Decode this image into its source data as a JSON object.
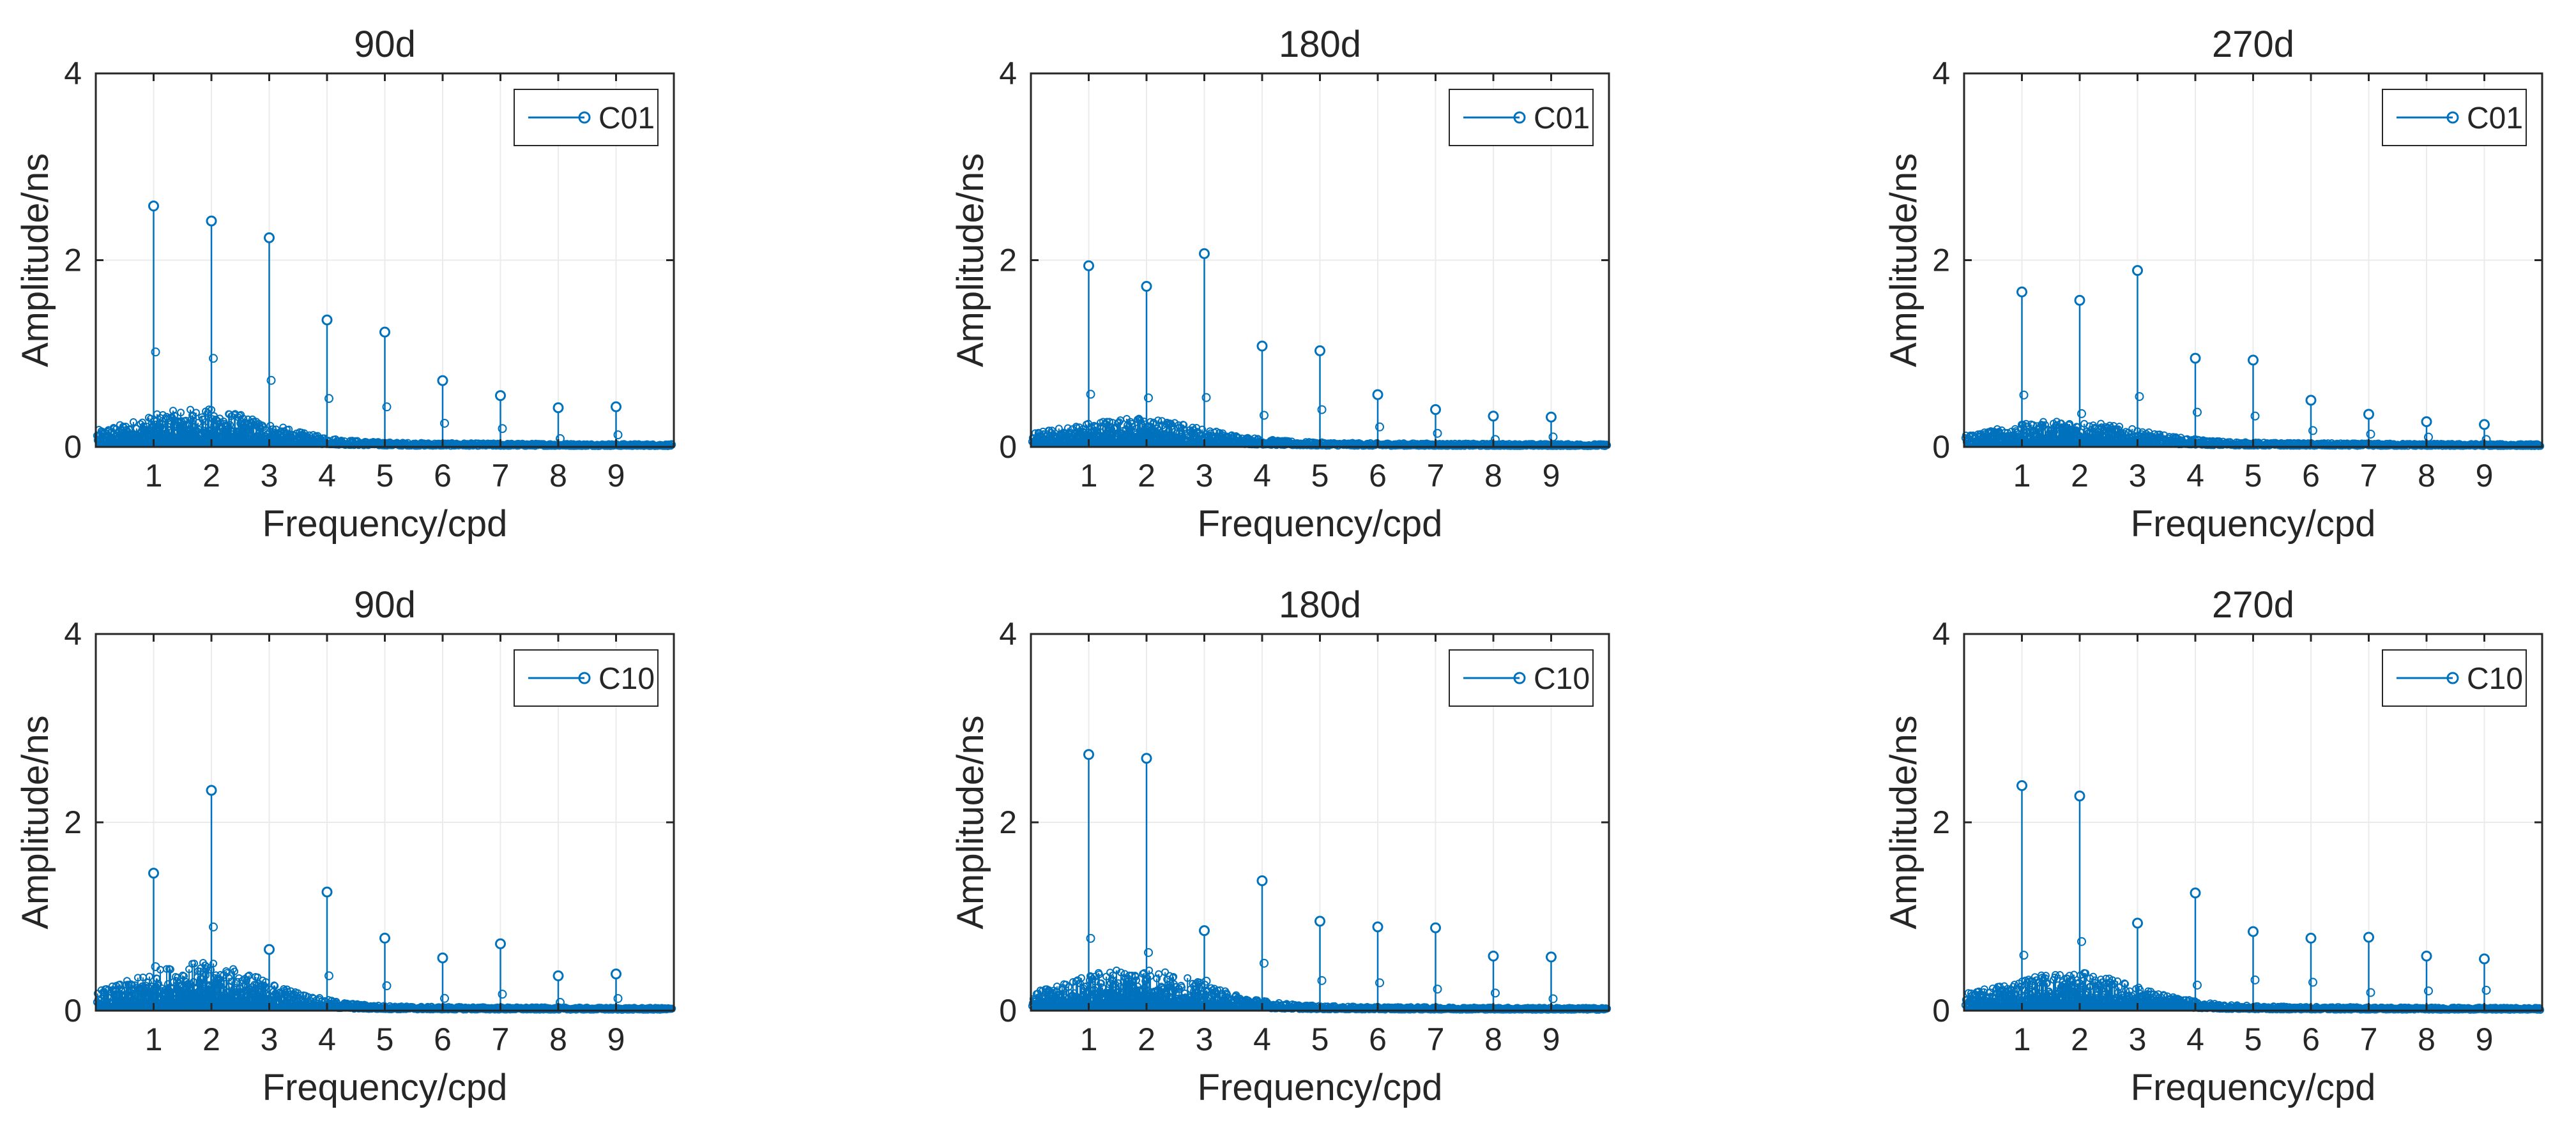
{
  "figure": {
    "panel_count": 6
  },
  "colors": {
    "series": "#0072BD",
    "grid": "#ebebeb",
    "axis": "#262626",
    "background": "#ffffff"
  },
  "chart_data": [
    {
      "type": "stem",
      "title": "90d",
      "xlabel": "Frequency/cpd",
      "ylabel": "Amplitude/ns",
      "xlim": [
        0,
        10
      ],
      "ylim": [
        0,
        4
      ],
      "xticks": [
        1,
        2,
        3,
        4,
        5,
        6,
        7,
        8,
        9
      ],
      "yticks": [
        0,
        2,
        4
      ],
      "legend": {
        "label": "C01",
        "position": "top-right"
      },
      "grid": true,
      "series": [
        {
          "name": "C01",
          "peaks": [
            [
              1,
              2.58
            ],
            [
              2,
              2.42
            ],
            [
              3,
              2.24
            ],
            [
              4,
              1.36
            ],
            [
              5,
              1.23
            ],
            [
              6,
              0.71
            ],
            [
              7,
              0.55
            ],
            [
              8,
              0.42
            ],
            [
              9,
              0.43
            ]
          ],
          "noise_level": 0.35
        }
      ]
    },
    {
      "type": "stem",
      "title": "180d",
      "xlabel": "Frequency/cpd",
      "ylabel": "Amplitude/ns",
      "xlim": [
        0,
        10
      ],
      "ylim": [
        0,
        4
      ],
      "xticks": [
        1,
        2,
        3,
        4,
        5,
        6,
        7,
        8,
        9
      ],
      "yticks": [
        0,
        2,
        4
      ],
      "legend": {
        "label": "C01",
        "position": "top-right"
      },
      "grid": true,
      "series": [
        {
          "name": "C01",
          "peaks": [
            [
              1,
              1.94
            ],
            [
              2,
              1.72
            ],
            [
              3,
              2.07
            ],
            [
              4,
              1.08
            ],
            [
              5,
              1.03
            ],
            [
              6,
              0.56
            ],
            [
              7,
              0.4
            ],
            [
              8,
              0.33
            ],
            [
              9,
              0.32
            ]
          ],
          "noise_level": 0.25
        }
      ]
    },
    {
      "type": "stem",
      "title": "270d",
      "xlabel": "Frequency/cpd",
      "ylabel": "Amplitude/ns",
      "xlim": [
        0,
        10
      ],
      "ylim": [
        0,
        4
      ],
      "xticks": [
        1,
        2,
        3,
        4,
        5,
        6,
        7,
        8,
        9
      ],
      "yticks": [
        0,
        2,
        4
      ],
      "legend": {
        "label": "C01",
        "position": "top-right"
      },
      "grid": true,
      "series": [
        {
          "name": "C01",
          "peaks": [
            [
              1,
              1.66
            ],
            [
              2,
              1.57
            ],
            [
              3,
              1.89
            ],
            [
              4,
              0.95
            ],
            [
              5,
              0.93
            ],
            [
              6,
              0.5
            ],
            [
              7,
              0.35
            ],
            [
              8,
              0.27
            ],
            [
              9,
              0.24
            ]
          ],
          "noise_level": 0.22
        }
      ]
    },
    {
      "type": "stem",
      "title": "90d",
      "xlabel": "Frequency/cpd",
      "ylabel": "Amplitude/ns",
      "xlim": [
        0,
        10
      ],
      "ylim": [
        0,
        4
      ],
      "xticks": [
        1,
        2,
        3,
        4,
        5,
        6,
        7,
        8,
        9
      ],
      "yticks": [
        0,
        2,
        4
      ],
      "legend": {
        "label": "C10",
        "position": "top-right"
      },
      "grid": true,
      "series": [
        {
          "name": "C10",
          "peaks": [
            [
              1,
              1.46
            ],
            [
              2,
              2.34
            ],
            [
              3,
              0.65
            ],
            [
              4,
              1.26
            ],
            [
              5,
              0.77
            ],
            [
              6,
              0.56
            ],
            [
              7,
              0.71
            ],
            [
              8,
              0.37
            ],
            [
              9,
              0.39
            ]
          ],
          "noise_level": 0.45
        }
      ]
    },
    {
      "type": "stem",
      "title": "180d",
      "xlabel": "Frequency/cpd",
      "ylabel": "Amplitude/ns",
      "xlim": [
        0,
        10
      ],
      "ylim": [
        0,
        4
      ],
      "xticks": [
        1,
        2,
        3,
        4,
        5,
        6,
        7,
        8,
        9
      ],
      "yticks": [
        0,
        2,
        4
      ],
      "legend": {
        "label": "C10",
        "position": "top-right"
      },
      "grid": true,
      "series": [
        {
          "name": "C10",
          "peaks": [
            [
              1,
              2.72
            ],
            [
              2,
              2.68
            ],
            [
              3,
              0.85
            ],
            [
              4,
              1.38
            ],
            [
              5,
              0.95
            ],
            [
              6,
              0.89
            ],
            [
              7,
              0.88
            ],
            [
              8,
              0.58
            ],
            [
              9,
              0.57
            ]
          ],
          "noise_level": 0.4
        }
      ]
    },
    {
      "type": "stem",
      "title": "270d",
      "xlabel": "Frequency/cpd",
      "ylabel": "Amplitude/ns",
      "xlim": [
        0,
        10
      ],
      "ylim": [
        0,
        4
      ],
      "xticks": [
        1,
        2,
        3,
        4,
        5,
        6,
        7,
        8,
        9
      ],
      "yticks": [
        0,
        2,
        4
      ],
      "legend": {
        "label": "C10",
        "position": "top-right"
      },
      "grid": true,
      "series": [
        {
          "name": "C10",
          "peaks": [
            [
              1,
              2.39
            ],
            [
              2,
              2.28
            ],
            [
              3,
              0.93
            ],
            [
              4,
              1.25
            ],
            [
              5,
              0.84
            ],
            [
              6,
              0.77
            ],
            [
              7,
              0.78
            ],
            [
              8,
              0.58
            ],
            [
              9,
              0.55
            ]
          ],
          "noise_level": 0.35
        }
      ]
    }
  ]
}
